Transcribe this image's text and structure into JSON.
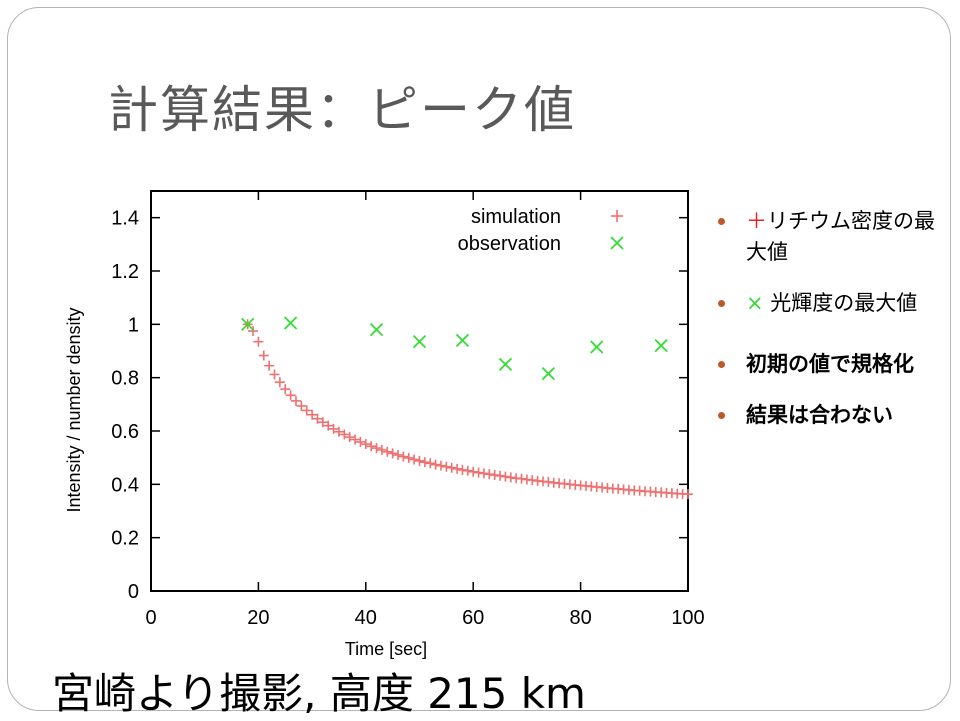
{
  "slide": {
    "title": "計算結果：ピーク値",
    "caption": "宮崎より撮影, 高度 215 km"
  },
  "bullets": [
    {
      "marker": "＋",
      "text": "リチウム密度の最大値"
    },
    {
      "marker": "×",
      "text": "光輝度の最大値"
    },
    {
      "marker": "",
      "text": "初期の値で規格化"
    },
    {
      "marker": "",
      "text": "結果は合わない"
    }
  ],
  "colors": {
    "simulation": "#f07070",
    "observation": "#33dd33",
    "bullet_dot": "#c0582c",
    "title": "#595959"
  },
  "chart_data": {
    "type": "scatter",
    "xlabel": "Time [sec]",
    "ylabel": "Intensity / number density",
    "xlim": [
      0,
      100
    ],
    "ylim": [
      0,
      1.5
    ],
    "xticks": [
      0,
      20,
      40,
      60,
      80,
      100
    ],
    "yticks": [
      0,
      0.2,
      0.4,
      0.6,
      0.8,
      1,
      1.2,
      1.4
    ],
    "ytick_labels": [
      "0",
      "0.2",
      "0.4",
      "0.6",
      "0.8",
      "1",
      "1.2",
      "1.4"
    ],
    "legend_position": "top-right",
    "series": [
      {
        "name": "simulation",
        "marker": "plus",
        "x": [
          18,
          19,
          20,
          21,
          22,
          23,
          24,
          25,
          26,
          27,
          28,
          29,
          30,
          31,
          32,
          33,
          34,
          35,
          36,
          37,
          38,
          39,
          40,
          41,
          42,
          43,
          44,
          45,
          46,
          47,
          48,
          49,
          50,
          51,
          52,
          53,
          54,
          55,
          56,
          57,
          58,
          59,
          60,
          61,
          62,
          63,
          64,
          65,
          66,
          67,
          68,
          69,
          70,
          71,
          72,
          73,
          74,
          75,
          76,
          77,
          78,
          79,
          80,
          81,
          82,
          83,
          84,
          85,
          86,
          87,
          88,
          89,
          90,
          91,
          92,
          93,
          94,
          95,
          96,
          97,
          98,
          99,
          100
        ],
        "y": [
          1.0,
          0.975,
          0.935,
          0.883,
          0.845,
          0.812,
          0.783,
          0.757,
          0.734,
          0.713,
          0.694,
          0.677,
          0.661,
          0.646,
          0.633,
          0.62,
          0.608,
          0.597,
          0.587,
          0.577,
          0.568,
          0.559,
          0.551,
          0.543,
          0.536,
          0.529,
          0.522,
          0.516,
          0.51,
          0.504,
          0.499,
          0.493,
          0.488,
          0.483,
          0.479,
          0.474,
          0.47,
          0.466,
          0.462,
          0.458,
          0.454,
          0.451,
          0.447,
          0.444,
          0.441,
          0.438,
          0.435,
          0.432,
          0.429,
          0.426,
          0.423,
          0.421,
          0.418,
          0.416,
          0.413,
          0.411,
          0.409,
          0.406,
          0.404,
          0.402,
          0.4,
          0.398,
          0.396,
          0.394,
          0.392,
          0.39,
          0.388,
          0.386,
          0.384,
          0.383,
          0.381,
          0.379,
          0.377,
          0.376,
          0.374,
          0.373,
          0.371,
          0.37,
          0.368,
          0.367,
          0.365,
          0.364,
          0.363
        ]
      },
      {
        "name": "observation",
        "marker": "cross",
        "x": [
          18,
          26,
          42,
          50,
          58,
          66,
          74,
          83,
          95
        ],
        "y": [
          1.0,
          1.005,
          0.98,
          0.935,
          0.94,
          0.85,
          0.815,
          0.915,
          0.92
        ]
      }
    ]
  }
}
